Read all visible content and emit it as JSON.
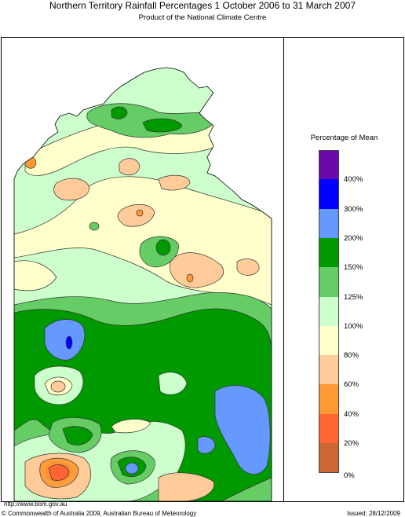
{
  "header": {
    "title": "Northern Territory Rainfall Percentages 1 October 2006 to 31 March 2007",
    "subtitle": "Product of the National Climate Centre"
  },
  "legend": {
    "title": "Percentage of Mean",
    "bands": [
      {
        "color": "#6a0aab"
      },
      {
        "color": "#0000ff"
      },
      {
        "color": "#6699ff"
      },
      {
        "color": "#009900"
      },
      {
        "color": "#66cc66"
      },
      {
        "color": "#ccffcc"
      },
      {
        "color": "#ffffcc"
      },
      {
        "color": "#ffcc99"
      },
      {
        "color": "#ff9933"
      },
      {
        "color": "#ff6633"
      },
      {
        "color": "#cc6633"
      }
    ],
    "labels": [
      "400%",
      "300%",
      "200%",
      "150%",
      "125%",
      "100%",
      "80%",
      "60%",
      "40%",
      "20%",
      "0%"
    ]
  },
  "footer": {
    "url": "http://www.bom.gov.au",
    "copyright": "© Commonwealth of Australia 2009, Australian Bureau of Meteorology",
    "issued": "Issued: 28/12/2009"
  }
}
